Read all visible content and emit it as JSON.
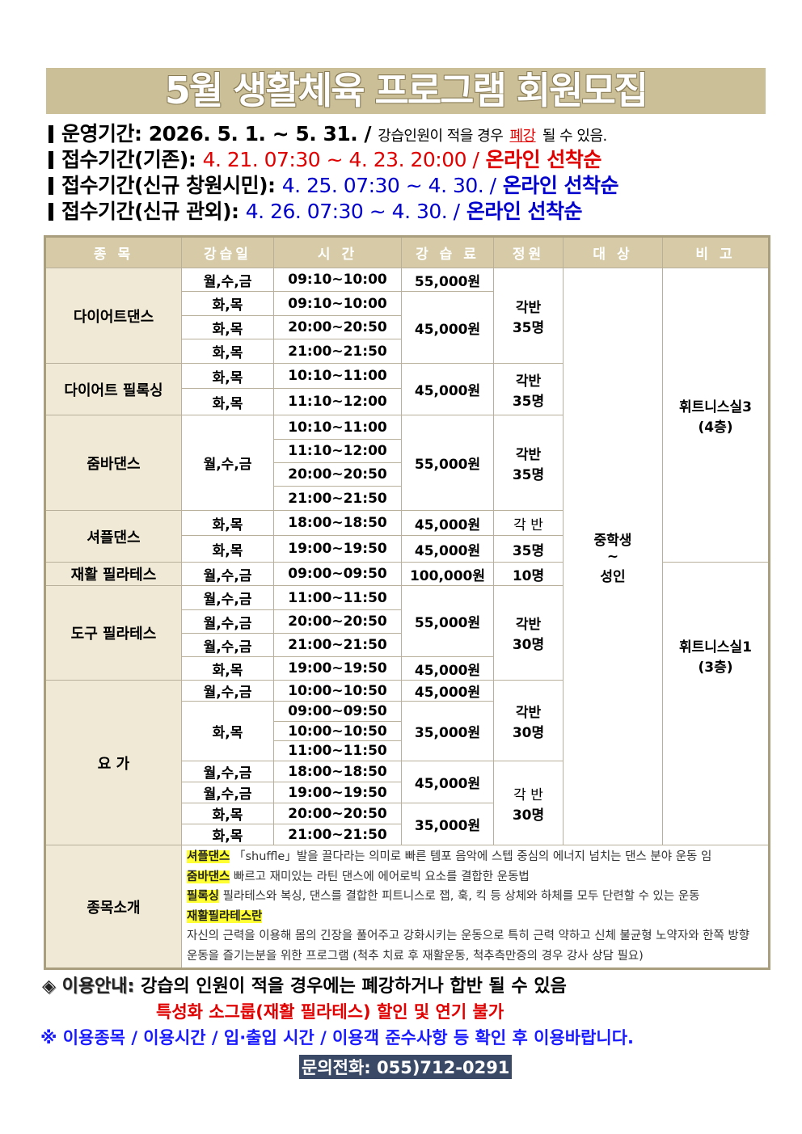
{
  "title": "5월 생활체육 프로그램 회원모집",
  "info": {
    "operation": {
      "label": "운영기간:",
      "value": "2026. 5. 1. ~ 5. 31. /",
      "note_a": "강습인원이 적을 경우",
      "note_red": "폐강",
      "note_b": "될 수 있음."
    },
    "reg_existing": {
      "label": "접수기간(기존):",
      "value": "4. 21. 07:30 ~ 4. 23. 20:00 /",
      "method": "온라인 선착순"
    },
    "reg_new_city": {
      "label": "접수기간(신규 창원시민):",
      "value": "4. 25. 07:30 ~ 4. 30. /",
      "method": "온라인 선착순"
    },
    "reg_new_other": {
      "label": "접수기간(신규 관외):",
      "value": "4. 26. 07:30 ~ 4. 30. /",
      "method": "온라인 선착순"
    }
  },
  "table": {
    "headers": [
      "종 목",
      "강습일",
      "시 간",
      "강 습 료",
      "정원",
      "대 상",
      "비 고"
    ],
    "programs": [
      "다이어트댄스",
      "다이어트 필록싱",
      "줌바댄스",
      "셔플댄스",
      "재활 필라테스",
      "도구 필라테스",
      "요 가",
      "종목소개"
    ],
    "days": [
      "월,수,금",
      "화,목",
      "화,목",
      "화,목",
      "화,목",
      "화,목",
      "월,수,금",
      "화,목",
      "화,목",
      "월,수,금",
      "월,수,금",
      "월,수,금",
      "월,수,금",
      "화,목",
      "월,수,금",
      "화,목",
      "월,수,금",
      "월,수,금",
      "화,목",
      "화,목"
    ],
    "times": [
      "09:10~10:00",
      "09:10~10:00",
      "20:00~20:50",
      "21:00~21:50",
      "10:10~11:00",
      "11:10~12:00",
      "10:10~11:00",
      "11:10~12:00",
      "20:00~20:50",
      "21:00~21:50",
      "18:00~18:50",
      "19:00~19:50",
      "09:00~09:50",
      "11:00~11:50",
      "20:00~20:50",
      "21:00~21:50",
      "19:00~19:50",
      "10:00~10:50",
      "09:00~09:50",
      "10:00~10:50",
      "11:00~11:50",
      "18:00~18:50",
      "19:00~19:50",
      "20:00~20:50",
      "21:00~21:50"
    ],
    "fees": [
      "55,000원",
      "45,000원",
      "45,000원",
      "55,000원",
      "45,000원",
      "45,000원",
      "100,000원",
      "55,000원",
      "45,000원",
      "45,000원",
      "35,000원",
      "45,000원",
      "35,000원"
    ],
    "capacity": {
      "each": "각반",
      "each_spaced": "각 반",
      "n35": "35명",
      "n30": "30명",
      "n10": "10명"
    },
    "target": {
      "a": "중학생",
      "b": "~",
      "c": "성인"
    },
    "remarks": [
      {
        "room": "휘트니스실3",
        "floor": "(4층)"
      },
      {
        "room": "휘트니스실1",
        "floor": "(3층)"
      }
    ],
    "intro": [
      {
        "tag": "셔플댄스",
        "text": "「shuffle」발을 끌다라는 의미로 빠른 템포 음악에 스텝 중심의 에너지 넘치는 댄스 분야 운동 임"
      },
      {
        "tag": "줌바댄스",
        "text": "빠르고 재미있는 라틴 댄스에 에어로빅 요소를 결합한 운동법"
      },
      {
        "tag": "필록싱",
        "text": "필라테스와 복싱, 댄스를 결합한 피트니스로 잽, 훅, 킥 등 상체와 하체를 모두 단련할 수 있는 운동"
      },
      {
        "tag": "재활필라테스란",
        "text": "자신의 근력을 이용해 몸의 긴장을 풀어주고 강화시키는 운동으로 특히 근력 약하고 신체 불균형 노약자와 한쪽 방향 운동을 즐기는분을 위한 프로그램 (척추 치료 후 재활운동, 척추측만증의 경우 강사 상담 필요)"
      }
    ]
  },
  "notes": {
    "usage_label": "◈ 이용안내:",
    "usage_text": "강습의 인원이 적을 경우에는 폐강하거나 합반 될 수 있음",
    "special": "특성화 소그룹(재활 필라테스) 할인 및 연기 불가",
    "reminder": "※ 이용종목 / 이용시간 / 입·출입 시간 / 이용객 준수사항 등 확인 후 이용바랍니다.",
    "phone": "문의전화: 055)712-0291"
  }
}
